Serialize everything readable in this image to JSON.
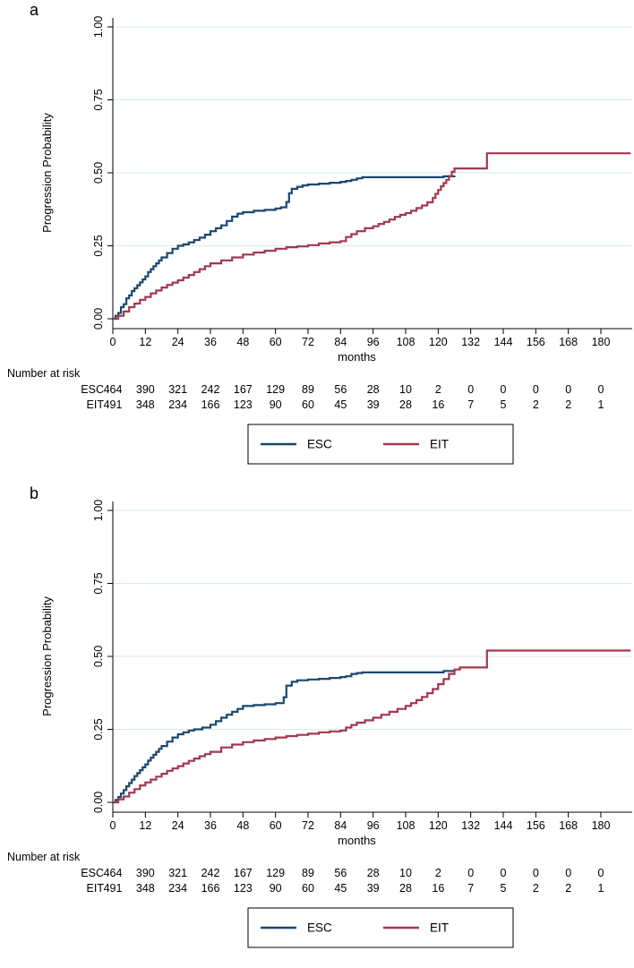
{
  "colors": {
    "grid": "#d8e8e8",
    "axis": "#000000",
    "esc": "#1a476f",
    "eit": "#a23750",
    "background": "#ffffff"
  },
  "chart_data": [
    {
      "type": "line",
      "subtype": "step-survival",
      "panel_label": "a",
      "xlabel": "months",
      "ylabel": "Progression Probability",
      "xlim": [
        0,
        191
      ],
      "ylim": [
        0,
        1.0
      ],
      "xticks": [
        0,
        12,
        24,
        36,
        48,
        60,
        72,
        84,
        96,
        108,
        120,
        132,
        144,
        156,
        168,
        180
      ],
      "yticks": [
        0,
        0.25,
        0.5,
        0.75,
        1
      ],
      "ytick_labels": [
        "0.00",
        "0.25",
        "0.50",
        "0.75",
        "1.00"
      ],
      "grid": true,
      "legend_position": "bottom-center",
      "series": [
        {
          "name": "ESC",
          "color": "#1a476f",
          "points": [
            [
              0,
              0
            ],
            [
              1,
              0.01
            ],
            [
              2,
              0.02
            ],
            [
              3,
              0.04
            ],
            [
              4,
              0.05
            ],
            [
              5,
              0.07
            ],
            [
              6,
              0.08
            ],
            [
              7,
              0.095
            ],
            [
              8,
              0.105
            ],
            [
              9,
              0.115
            ],
            [
              10,
              0.125
            ],
            [
              11,
              0.135
            ],
            [
              12,
              0.145
            ],
            [
              13,
              0.16
            ],
            [
              14,
              0.17
            ],
            [
              15,
              0.18
            ],
            [
              16,
              0.19
            ],
            [
              17,
              0.2
            ],
            [
              18,
              0.21
            ],
            [
              20,
              0.225
            ],
            [
              22,
              0.24
            ],
            [
              24,
              0.25
            ],
            [
              26,
              0.255
            ],
            [
              28,
              0.262
            ],
            [
              30,
              0.27
            ],
            [
              32,
              0.278
            ],
            [
              34,
              0.288
            ],
            [
              36,
              0.3
            ],
            [
              38,
              0.31
            ],
            [
              40,
              0.32
            ],
            [
              42,
              0.335
            ],
            [
              44,
              0.35
            ],
            [
              46,
              0.36
            ],
            [
              48,
              0.365
            ],
            [
              52,
              0.37
            ],
            [
              56,
              0.373
            ],
            [
              60,
              0.378
            ],
            [
              62,
              0.382
            ],
            [
              64,
              0.4
            ],
            [
              65,
              0.43
            ],
            [
              66,
              0.445
            ],
            [
              68,
              0.452
            ],
            [
              70,
              0.457
            ],
            [
              72,
              0.46
            ],
            [
              76,
              0.463
            ],
            [
              80,
              0.466
            ],
            [
              84,
              0.469
            ],
            [
              86,
              0.472
            ],
            [
              88,
              0.476
            ],
            [
              90,
              0.481
            ],
            [
              92,
              0.485
            ],
            [
              120,
              0.485
            ],
            [
              122,
              0.488
            ],
            [
              126,
              0.49
            ]
          ]
        },
        {
          "name": "EIT",
          "color": "#a23750",
          "points": [
            [
              0,
              0
            ],
            [
              2,
              0.01
            ],
            [
              4,
              0.025
            ],
            [
              6,
              0.04
            ],
            [
              8,
              0.052
            ],
            [
              10,
              0.065
            ],
            [
              12,
              0.075
            ],
            [
              14,
              0.087
            ],
            [
              16,
              0.097
            ],
            [
              18,
              0.107
            ],
            [
              20,
              0.116
            ],
            [
              22,
              0.124
            ],
            [
              24,
              0.132
            ],
            [
              26,
              0.141
            ],
            [
              28,
              0.15
            ],
            [
              30,
              0.16
            ],
            [
              32,
              0.17
            ],
            [
              34,
              0.18
            ],
            [
              36,
              0.19
            ],
            [
              40,
              0.2
            ],
            [
              44,
              0.21
            ],
            [
              48,
              0.22
            ],
            [
              52,
              0.227
            ],
            [
              56,
              0.233
            ],
            [
              60,
              0.24
            ],
            [
              64,
              0.245
            ],
            [
              68,
              0.248
            ],
            [
              72,
              0.252
            ],
            [
              76,
              0.258
            ],
            [
              80,
              0.262
            ],
            [
              84,
              0.266
            ],
            [
              86,
              0.28
            ],
            [
              88,
              0.29
            ],
            [
              90,
              0.3
            ],
            [
              93,
              0.31
            ],
            [
              96,
              0.317
            ],
            [
              98,
              0.325
            ],
            [
              100,
              0.332
            ],
            [
              102,
              0.34
            ],
            [
              104,
              0.349
            ],
            [
              106,
              0.356
            ],
            [
              108,
              0.362
            ],
            [
              110,
              0.37
            ],
            [
              112,
              0.379
            ],
            [
              114,
              0.388
            ],
            [
              116,
              0.399
            ],
            [
              118,
              0.414
            ],
            [
              119,
              0.428
            ],
            [
              120,
              0.441
            ],
            [
              121,
              0.454
            ],
            [
              122,
              0.465
            ],
            [
              123,
              0.476
            ],
            [
              124,
              0.489
            ],
            [
              125,
              0.503
            ],
            [
              126,
              0.515
            ],
            [
              136,
              0.515
            ],
            [
              138,
              0.567
            ],
            [
              191,
              0.567
            ]
          ]
        }
      ],
      "number_at_risk": {
        "title": "Number at risk",
        "times": [
          0,
          12,
          24,
          36,
          48,
          60,
          72,
          84,
          96,
          108,
          120,
          132,
          144,
          156,
          168,
          180
        ],
        "rows": [
          {
            "name": "ESC",
            "counts": [
              464,
              390,
              321,
              242,
              167,
              129,
              89,
              56,
              28,
              10,
              2,
              0,
              0,
              0,
              0,
              0
            ]
          },
          {
            "name": "EIT",
            "counts": [
              491,
              348,
              234,
              166,
              123,
              90,
              60,
              45,
              39,
              28,
              16,
              7,
              5,
              2,
              2,
              1
            ]
          }
        ]
      },
      "legend": [
        {
          "label": "ESC",
          "color": "#1a476f"
        },
        {
          "label": "EIT",
          "color": "#a23750"
        }
      ]
    },
    {
      "type": "line",
      "subtype": "step-survival",
      "panel_label": "b",
      "xlabel": "months",
      "ylabel": "Progression Probability",
      "xlim": [
        0,
        191
      ],
      "ylim": [
        0,
        1.0
      ],
      "xticks": [
        0,
        12,
        24,
        36,
        48,
        60,
        72,
        84,
        96,
        108,
        120,
        132,
        144,
        156,
        168,
        180
      ],
      "yticks": [
        0,
        0.25,
        0.5,
        0.75,
        1
      ],
      "ytick_labels": [
        "0.00",
        "0.25",
        "0.50",
        "0.75",
        "1.00"
      ],
      "grid": true,
      "legend_position": "bottom-center",
      "series": [
        {
          "name": "ESC",
          "color": "#1a476f",
          "points": [
            [
              0,
              0
            ],
            [
              1,
              0.008
            ],
            [
              2,
              0.018
            ],
            [
              3,
              0.03
            ],
            [
              4,
              0.042
            ],
            [
              5,
              0.055
            ],
            [
              6,
              0.066
            ],
            [
              7,
              0.078
            ],
            [
              8,
              0.09
            ],
            [
              9,
              0.1
            ],
            [
              10,
              0.11
            ],
            [
              11,
              0.12
            ],
            [
              12,
              0.13
            ],
            [
              13,
              0.143
            ],
            [
              14,
              0.153
            ],
            [
              15,
              0.163
            ],
            [
              16,
              0.173
            ],
            [
              17,
              0.183
            ],
            [
              18,
              0.193
            ],
            [
              20,
              0.208
            ],
            [
              22,
              0.222
            ],
            [
              24,
              0.233
            ],
            [
              26,
              0.24
            ],
            [
              28,
              0.246
            ],
            [
              30,
              0.25
            ],
            [
              33,
              0.256
            ],
            [
              36,
              0.266
            ],
            [
              38,
              0.278
            ],
            [
              40,
              0.29
            ],
            [
              42,
              0.3
            ],
            [
              44,
              0.31
            ],
            [
              46,
              0.32
            ],
            [
              48,
              0.33
            ],
            [
              52,
              0.333
            ],
            [
              56,
              0.336
            ],
            [
              60,
              0.34
            ],
            [
              63,
              0.36
            ],
            [
              64,
              0.4
            ],
            [
              66,
              0.413
            ],
            [
              68,
              0.418
            ],
            [
              72,
              0.421
            ],
            [
              76,
              0.423
            ],
            [
              80,
              0.426
            ],
            [
              84,
              0.429
            ],
            [
              86,
              0.432
            ],
            [
              88,
              0.44
            ],
            [
              90,
              0.443
            ],
            [
              92,
              0.445
            ],
            [
              120,
              0.445
            ],
            [
              122,
              0.45
            ],
            [
              126,
              0.455
            ]
          ]
        },
        {
          "name": "EIT",
          "color": "#a23750",
          "points": [
            [
              0,
              0
            ],
            [
              2,
              0.01
            ],
            [
              4,
              0.02
            ],
            [
              6,
              0.033
            ],
            [
              8,
              0.045
            ],
            [
              10,
              0.058
            ],
            [
              12,
              0.068
            ],
            [
              14,
              0.078
            ],
            [
              16,
              0.088
            ],
            [
              18,
              0.098
            ],
            [
              20,
              0.108
            ],
            [
              22,
              0.116
            ],
            [
              24,
              0.124
            ],
            [
              26,
              0.133
            ],
            [
              28,
              0.142
            ],
            [
              30,
              0.15
            ],
            [
              32,
              0.158
            ],
            [
              34,
              0.165
            ],
            [
              36,
              0.173
            ],
            [
              40,
              0.188
            ],
            [
              44,
              0.198
            ],
            [
              48,
              0.206
            ],
            [
              52,
              0.212
            ],
            [
              56,
              0.217
            ],
            [
              60,
              0.222
            ],
            [
              64,
              0.227
            ],
            [
              68,
              0.231
            ],
            [
              72,
              0.235
            ],
            [
              76,
              0.24
            ],
            [
              80,
              0.243
            ],
            [
              84,
              0.246
            ],
            [
              86,
              0.256
            ],
            [
              88,
              0.265
            ],
            [
              90,
              0.273
            ],
            [
              93,
              0.281
            ],
            [
              96,
              0.29
            ],
            [
              99,
              0.3
            ],
            [
              102,
              0.31
            ],
            [
              105,
              0.32
            ],
            [
              108,
              0.33
            ],
            [
              110,
              0.34
            ],
            [
              112,
              0.35
            ],
            [
              114,
              0.361
            ],
            [
              116,
              0.374
            ],
            [
              118,
              0.388
            ],
            [
              120,
              0.405
            ],
            [
              122,
              0.422
            ],
            [
              124,
              0.44
            ],
            [
              126,
              0.455
            ],
            [
              128,
              0.462
            ],
            [
              136,
              0.462
            ],
            [
              138,
              0.52
            ],
            [
              191,
              0.52
            ]
          ]
        }
      ],
      "number_at_risk": {
        "title": "Number at risk",
        "times": [
          0,
          12,
          24,
          36,
          48,
          60,
          72,
          84,
          96,
          108,
          120,
          132,
          144,
          156,
          168,
          180
        ],
        "rows": [
          {
            "name": "ESC",
            "counts": [
              464,
              390,
              321,
              242,
              167,
              129,
              89,
              56,
              28,
              10,
              2,
              0,
              0,
              0,
              0,
              0
            ]
          },
          {
            "name": "EIT",
            "counts": [
              491,
              348,
              234,
              166,
              123,
              90,
              60,
              45,
              39,
              28,
              16,
              7,
              5,
              2,
              2,
              1
            ]
          }
        ]
      },
      "legend": [
        {
          "label": "ESC",
          "color": "#1a476f"
        },
        {
          "label": "EIT",
          "color": "#a23750"
        }
      ]
    }
  ]
}
